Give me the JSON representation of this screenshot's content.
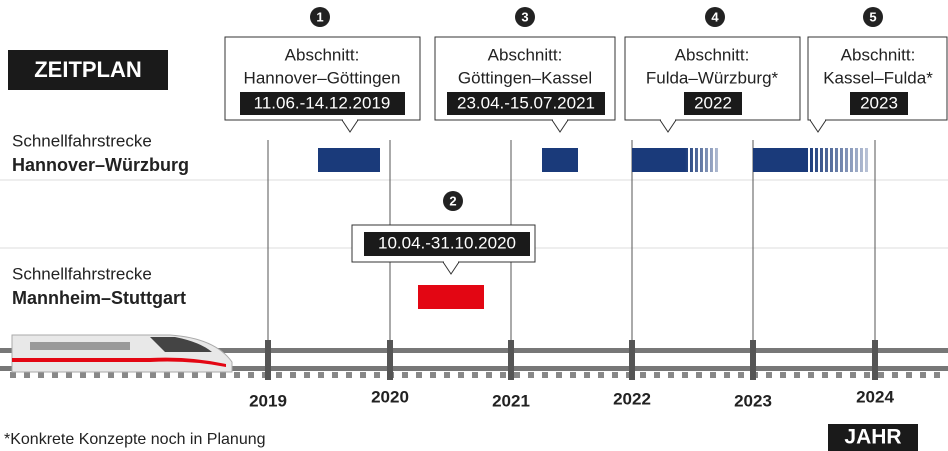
{
  "header": {
    "title": "ZEITPLAN"
  },
  "sections": [
    {
      "number": "1",
      "label": "Abschnitt:",
      "name": "Hannover–Göttingen",
      "dates": "11.06.-14.12.2019"
    },
    {
      "number": "3",
      "label": "Abschnitt:",
      "name": "Göttingen–Kassel",
      "dates": "23.04.-15.07.2021"
    },
    {
      "number": "4",
      "label": "Abschnitt:",
      "name": "Fulda–Würzburg*",
      "dates": "2022"
    },
    {
      "number": "5",
      "label": "Abschnitt:",
      "name": "Kassel–Fulda*",
      "dates": "2023"
    }
  ],
  "routes": [
    {
      "label": "Schnellfahrstrecke",
      "name": "Hannover–Würzburg"
    },
    {
      "label": "Schnellfahrstrecke",
      "name": "Mannheim–Stuttgart"
    }
  ],
  "extra": {
    "number": "2",
    "dates": "10.04.-31.10.2020"
  },
  "years": [
    "2019",
    "2020",
    "2021",
    "2022",
    "2023",
    "2024"
  ],
  "axis_label": "JAHR",
  "footnote": "*Konkrete Konzepte noch in Planung"
}
